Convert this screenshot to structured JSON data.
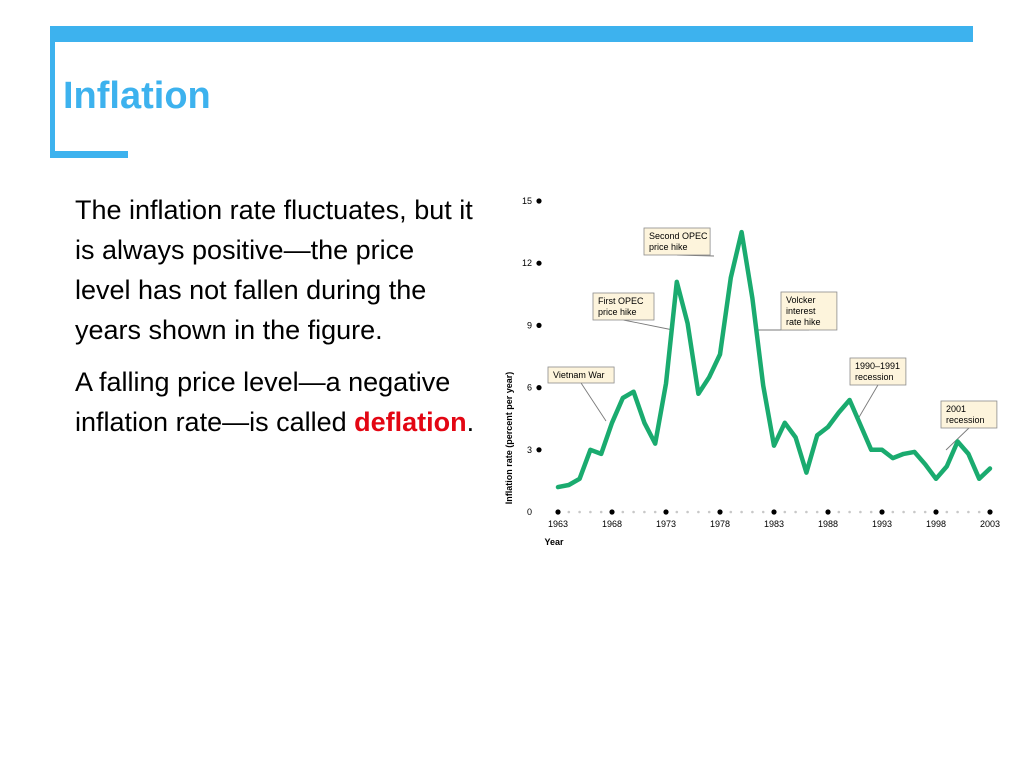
{
  "slide": {
    "title": "Inflation",
    "paragraph1": "The inflation rate fluctuates, but it is always positive—the price level has not fallen during the years shown in the figure.",
    "paragraph2_before": "A falling price level—a negative inflation rate—is called ",
    "paragraph2_keyword": "deflation",
    "paragraph2_after": ".",
    "keyword_color": "#e30613",
    "accent_color": "#3db2ee"
  },
  "chart_data": {
    "type": "line",
    "ylabel": "Inflation rate (percent per year)",
    "xlabel": "Year",
    "xlim": [
      1963,
      2003
    ],
    "ylim": [
      0,
      15
    ],
    "y_ticks": [
      "0",
      "3",
      "6",
      "9",
      "12",
      "15"
    ],
    "x_ticks": [
      "1963",
      "1968",
      "1973",
      "1978",
      "1983",
      "1988",
      "1993",
      "1998",
      "2003"
    ],
    "line_color": "#1aab6f",
    "series": [
      {
        "x": [
          1963,
          1964,
          1965,
          1966,
          1967,
          1968,
          1969,
          1970,
          1971,
          1972,
          1973,
          1974,
          1975,
          1976,
          1977,
          1978,
          1979,
          1980,
          1981,
          1982,
          1983,
          1984,
          1985,
          1986,
          1987,
          1988,
          1989,
          1990,
          1991,
          1992,
          1993,
          1994,
          1995,
          1996,
          1997,
          1998,
          1999,
          2000,
          2001,
          2002,
          2003
        ],
        "y": [
          1.2,
          1.3,
          1.6,
          3.0,
          2.8,
          4.3,
          5.5,
          5.8,
          4.3,
          3.3,
          6.2,
          11.1,
          9.1,
          5.7,
          6.5,
          7.6,
          11.3,
          13.5,
          10.3,
          6.1,
          3.2,
          4.3,
          3.6,
          1.9,
          3.7,
          4.1,
          4.8,
          5.4,
          4.2,
          3.0,
          3.0,
          2.6,
          2.8,
          2.9,
          2.3,
          1.6,
          2.2,
          3.4,
          2.8,
          1.6,
          2.1
        ]
      }
    ],
    "annotations": [
      {
        "label": [
          "Vietnam War"
        ],
        "x": 1969,
        "y": 5.5
      },
      {
        "label": [
          "First OPEC",
          "price hike"
        ],
        "x": 1974,
        "y": 11.1
      },
      {
        "label": [
          "Second OPEC",
          "price hike"
        ],
        "x": 1980,
        "y": 13.5
      },
      {
        "label": [
          "Volcker",
          "interest",
          "rate hike"
        ],
        "x": 1981,
        "y": 10.3
      },
      {
        "label": [
          "1990–1991",
          "recession"
        ],
        "x": 1991,
        "y": 4.2
      },
      {
        "label": [
          "2001",
          "recession"
        ],
        "x": 2001,
        "y": 2.8
      }
    ]
  }
}
